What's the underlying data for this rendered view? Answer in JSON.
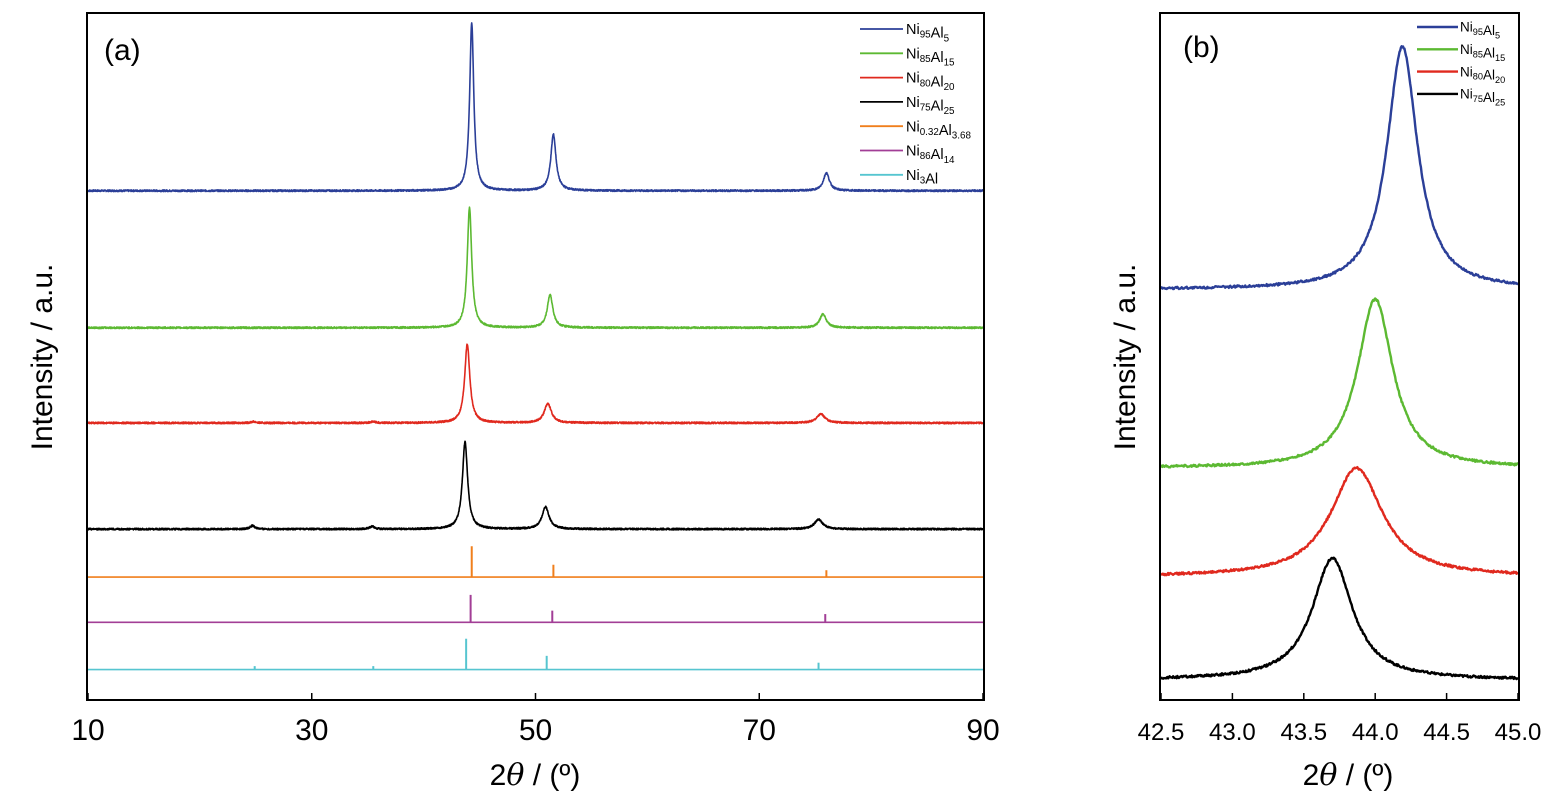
{
  "chart_data": [
    {
      "type": "line",
      "panel_label": "(a)",
      "xlabel_prefix": "2",
      "xlabel_symbol": "θ",
      "xlabel_suffix": " / (º)",
      "ylabel": "Intensity / a.u.",
      "xlim": [
        10,
        90
      ],
      "xticks": [
        "10",
        "30",
        "50",
        "70",
        "90"
      ],
      "legend_position": "top-right",
      "series": [
        {
          "name": "Ni95Al5",
          "label_parts": [
            [
              "Ni",
              ""
            ],
            [
              "95",
              "sub"
            ],
            [
              "Al",
              ""
            ],
            [
              "5",
              "sub"
            ]
          ],
          "color": "#2b3f98",
          "kind": "xrd",
          "baseline": 0.742,
          "peaks": [
            [
              44.3,
              0.245,
              0.22
            ],
            [
              51.6,
              0.082,
              0.28
            ],
            [
              76.0,
              0.026,
              0.32
            ]
          ],
          "minor": []
        },
        {
          "name": "Ni85Al15",
          "label_parts": [
            [
              "Ni",
              ""
            ],
            [
              "85",
              "sub"
            ],
            [
              "Al",
              ""
            ],
            [
              "15",
              "sub"
            ]
          ],
          "color": "#5cb932",
          "kind": "xrd",
          "baseline": 0.542,
          "peaks": [
            [
              44.1,
              0.175,
              0.24
            ],
            [
              51.3,
              0.048,
              0.3
            ],
            [
              75.7,
              0.02,
              0.35
            ]
          ],
          "minor": []
        },
        {
          "name": "Ni80Al20",
          "label_parts": [
            [
              "Ni",
              ""
            ],
            [
              "80",
              "sub"
            ],
            [
              "Al",
              ""
            ],
            [
              "20",
              "sub"
            ]
          ],
          "color": "#e0291e",
          "kind": "xrd",
          "baseline": 0.403,
          "peaks": [
            [
              43.9,
              0.115,
              0.28
            ],
            [
              51.1,
              0.028,
              0.38
            ],
            [
              75.5,
              0.013,
              0.45
            ]
          ],
          "minor": [
            [
              24.8,
              0.002
            ],
            [
              35.5,
              0.002
            ]
          ]
        },
        {
          "name": "Ni75Al25",
          "label_parts": [
            [
              "Ni",
              ""
            ],
            [
              "75",
              "sub"
            ],
            [
              "Al",
              ""
            ],
            [
              "25",
              "sub"
            ]
          ],
          "color": "#000000",
          "kind": "xrd",
          "baseline": 0.248,
          "peaks": [
            [
              43.7,
              0.127,
              0.28
            ],
            [
              50.9,
              0.032,
              0.38
            ],
            [
              75.3,
              0.014,
              0.45
            ]
          ],
          "minor": [
            [
              24.7,
              0.005
            ],
            [
              35.4,
              0.004
            ]
          ]
        },
        {
          "name": "Ni0.32Al3.68",
          "label_parts": [
            [
              "Ni",
              ""
            ],
            [
              "0.32",
              "sub"
            ],
            [
              "Al",
              ""
            ],
            [
              "3.68",
              "sub"
            ]
          ],
          "color": "#f07f1c",
          "kind": "ref",
          "baseline": 0.178,
          "sticks": [
            [
              44.3,
              0.045
            ],
            [
              51.6,
              0.018
            ],
            [
              76.0,
              0.01
            ]
          ]
        },
        {
          "name": "Ni86Al14",
          "label_parts": [
            [
              "Ni",
              ""
            ],
            [
              "86",
              "sub"
            ],
            [
              "Al",
              ""
            ],
            [
              "14",
              "sub"
            ]
          ],
          "color": "#a23e96",
          "kind": "ref",
          "baseline": 0.112,
          "sticks": [
            [
              44.2,
              0.04
            ],
            [
              51.5,
              0.017
            ],
            [
              75.9,
              0.012
            ]
          ]
        },
        {
          "name": "Ni3Al",
          "label_parts": [
            [
              "Ni",
              ""
            ],
            [
              "3",
              "sub"
            ],
            [
              "Al",
              ""
            ]
          ],
          "color": "#56c5d0",
          "kind": "ref",
          "baseline": 0.043,
          "sticks": [
            [
              24.9,
              0.005
            ],
            [
              35.5,
              0.005
            ],
            [
              43.8,
              0.045
            ],
            [
              51.0,
              0.02
            ],
            [
              75.3,
              0.01
            ]
          ]
        }
      ]
    },
    {
      "type": "line",
      "panel_label": "(b)",
      "xlabel_prefix": "2",
      "xlabel_symbol": "θ",
      "xlabel_suffix": " / (º)",
      "ylabel": "Intensity / a.u.",
      "xlim": [
        42.5,
        45.0
      ],
      "xticks": [
        "42.5",
        "43.0",
        "43.5",
        "44.0",
        "44.5",
        "45.0"
      ],
      "legend_position": "top-right",
      "series": [
        {
          "name": "Ni95Al5",
          "label_parts": [
            [
              "Ni",
              ""
            ],
            [
              "95",
              "sub"
            ],
            [
              "Al",
              ""
            ],
            [
              "5",
              "sub"
            ]
          ],
          "color": "#2b3f98",
          "baseline": 0.61,
          "center": 44.19,
          "height": 0.38,
          "width": 0.13
        },
        {
          "name": "Ni85Al15",
          "label_parts": [
            [
              "Ni",
              ""
            ],
            [
              "85",
              "sub"
            ],
            [
              "Al",
              ""
            ],
            [
              "15",
              "sub"
            ]
          ],
          "color": "#5cb932",
          "baseline": 0.331,
          "center": 44.0,
          "height": 0.264,
          "width": 0.15
        },
        {
          "name": "Ni80Al20",
          "label_parts": [
            [
              "Ni",
              ""
            ],
            [
              "80",
              "sub"
            ],
            [
              "Al",
              ""
            ],
            [
              "20",
              "sub"
            ]
          ],
          "color": "#e0291e",
          "baseline": 0.161,
          "center": 43.87,
          "height": 0.17,
          "width": 0.22
        },
        {
          "name": "Ni75Al25",
          "label_parts": [
            [
              "Ni",
              ""
            ],
            [
              "75",
              "sub"
            ],
            [
              "Al",
              ""
            ],
            [
              "25",
              "sub"
            ]
          ],
          "color": "#000000",
          "baseline": 0.0,
          "center": 43.7,
          "height": 0.19,
          "width": 0.17
        }
      ]
    }
  ]
}
